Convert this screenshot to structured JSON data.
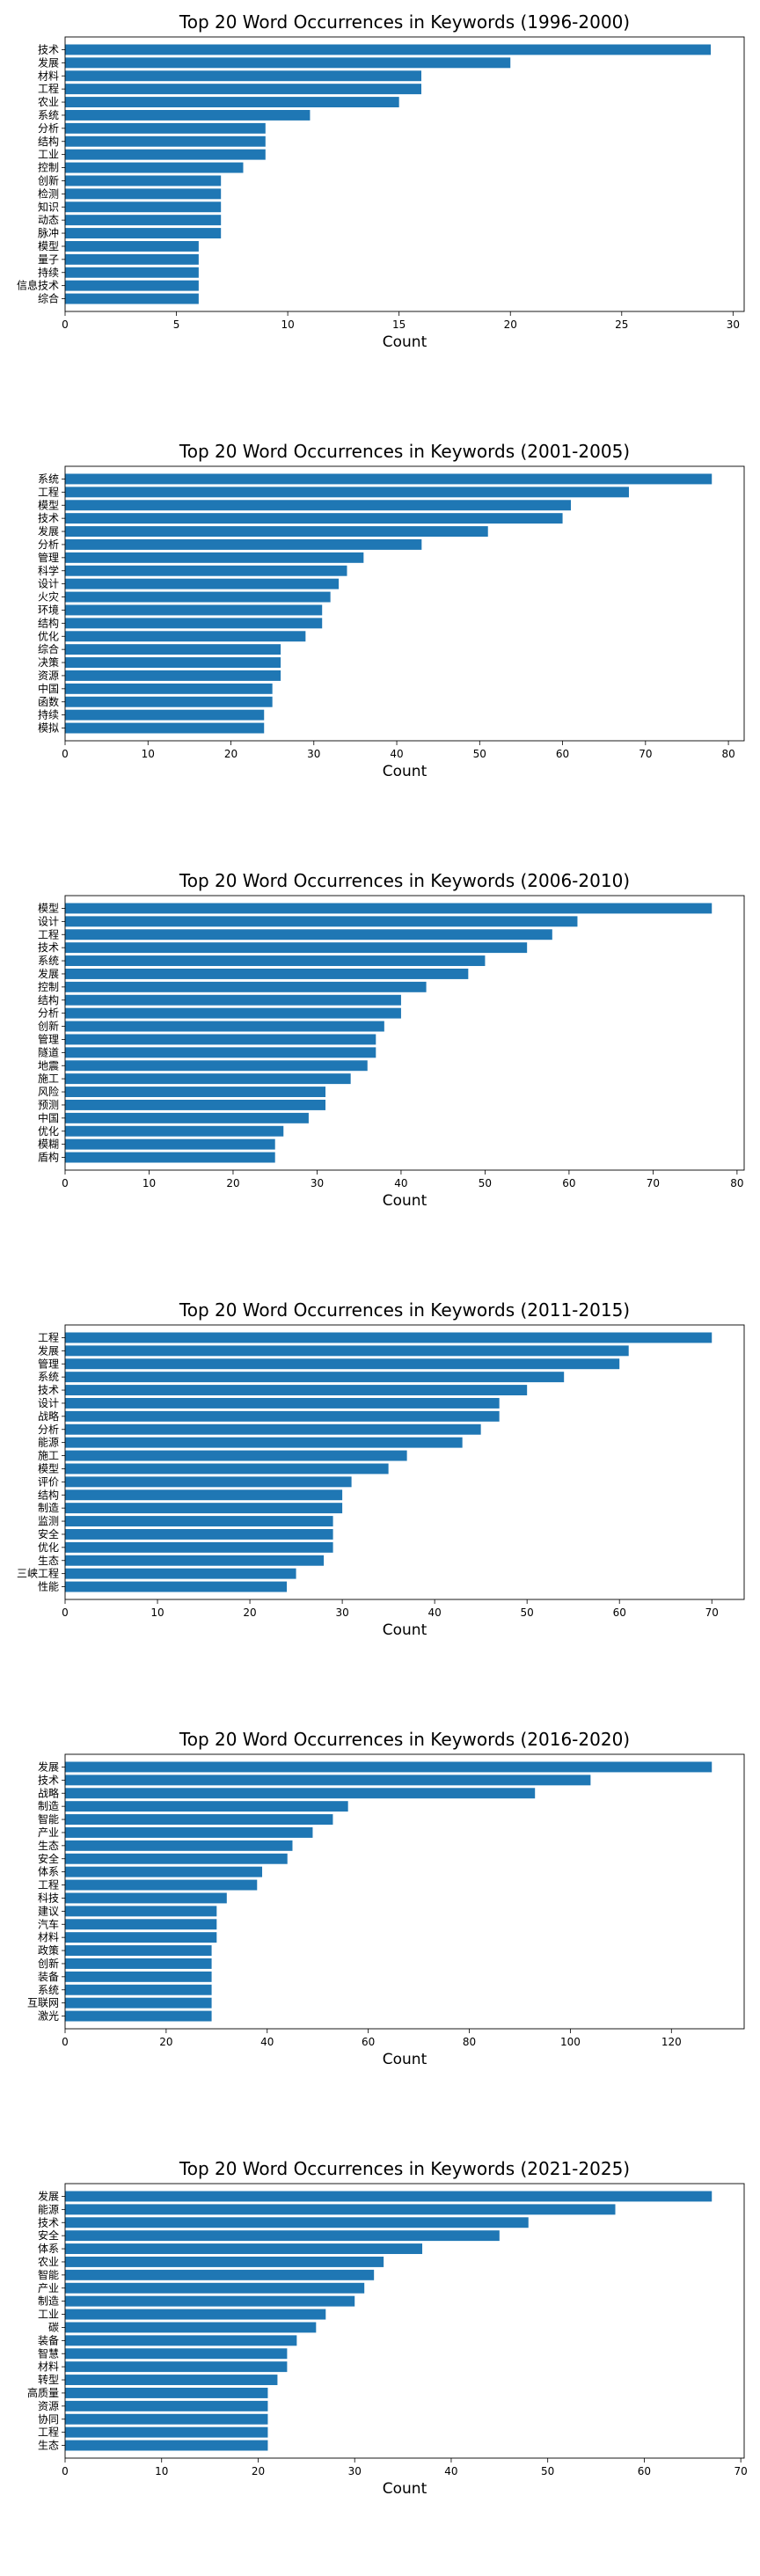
{
  "chart_data": [
    {
      "type": "bar",
      "orientation": "horizontal",
      "title": "Top 20 Word Occurrences in Keywords (1996-2000)",
      "xlabel": "Count",
      "ylabel": "",
      "xlim": [
        0,
        30.5
      ],
      "xticks": [
        0,
        5,
        10,
        15,
        20,
        25,
        30
      ],
      "categories": [
        "技术",
        "发展",
        "材料",
        "工程",
        "农业",
        "系统",
        "分析",
        "结构",
        "工业",
        "控制",
        "创新",
        "检测",
        "知识",
        "动态",
        "脉冲",
        "模型",
        "量子",
        "持续",
        "信息技术",
        "综合"
      ],
      "values": [
        29,
        20,
        16,
        16,
        15,
        11,
        9,
        9,
        9,
        8,
        7,
        7,
        7,
        7,
        7,
        6,
        6,
        6,
        6,
        6
      ],
      "bar_color": "#1f77b4"
    },
    {
      "type": "bar",
      "orientation": "horizontal",
      "title": "Top 20 Word Occurrences in Keywords (2001-2005)",
      "xlabel": "Count",
      "ylabel": "",
      "xlim": [
        0,
        81.9
      ],
      "xticks": [
        0,
        10,
        20,
        30,
        40,
        50,
        60,
        70,
        80
      ],
      "categories": [
        "系统",
        "工程",
        "模型",
        "技术",
        "发展",
        "分析",
        "管理",
        "科学",
        "设计",
        "火灾",
        "环境",
        "结构",
        "优化",
        "综合",
        "决策",
        "资源",
        "中国",
        "函数",
        "持续",
        "模拟"
      ],
      "values": [
        78,
        68,
        61,
        60,
        51,
        43,
        36,
        34,
        33,
        32,
        31,
        31,
        29,
        26,
        26,
        26,
        25,
        25,
        24,
        24
      ],
      "bar_color": "#1f77b4"
    },
    {
      "type": "bar",
      "orientation": "horizontal",
      "title": "Top 20 Word Occurrences in Keywords (2006-2010)",
      "xlabel": "Count",
      "ylabel": "",
      "xlim": [
        0,
        80.85
      ],
      "xticks": [
        0,
        10,
        20,
        30,
        40,
        50,
        60,
        70,
        80
      ],
      "categories": [
        "模型",
        "设计",
        "工程",
        "技术",
        "系统",
        "发展",
        "控制",
        "结构",
        "分析",
        "创新",
        "管理",
        "隧道",
        "地震",
        "施工",
        "风险",
        "预测",
        "中国",
        "优化",
        "模糊",
        "盾构"
      ],
      "values": [
        77,
        61,
        58,
        55,
        50,
        48,
        43,
        40,
        40,
        38,
        37,
        37,
        36,
        34,
        31,
        31,
        29,
        26,
        25,
        25
      ],
      "bar_color": "#1f77b4"
    },
    {
      "type": "bar",
      "orientation": "horizontal",
      "title": "Top 20 Word Occurrences in Keywords (2011-2015)",
      "xlabel": "Count",
      "ylabel": "",
      "xlim": [
        0,
        73.5
      ],
      "xticks": [
        0,
        10,
        20,
        30,
        40,
        50,
        60,
        70
      ],
      "categories": [
        "工程",
        "发展",
        "管理",
        "系统",
        "技术",
        "设计",
        "战略",
        "分析",
        "能源",
        "施工",
        "模型",
        "评价",
        "结构",
        "制造",
        "监测",
        "安全",
        "优化",
        "生态",
        "三峡工程",
        "性能"
      ],
      "values": [
        70,
        61,
        60,
        54,
        50,
        47,
        47,
        45,
        43,
        37,
        35,
        31,
        30,
        30,
        29,
        29,
        29,
        28,
        25,
        24
      ],
      "bar_color": "#1f77b4"
    },
    {
      "type": "bar",
      "orientation": "horizontal",
      "title": "Top 20 Word Occurrences in Keywords (2016-2020)",
      "xlabel": "Count",
      "ylabel": "",
      "xlim": [
        0,
        134.4
      ],
      "xticks": [
        0,
        20,
        40,
        60,
        80,
        100,
        120
      ],
      "categories": [
        "发展",
        "技术",
        "战略",
        "制造",
        "智能",
        "产业",
        "生态",
        "安全",
        "体系",
        "工程",
        "科技",
        "建议",
        "汽车",
        "材料",
        "政策",
        "创新",
        "装备",
        "系统",
        "互联网",
        "激光"
      ],
      "values": [
        128,
        104,
        93,
        56,
        53,
        49,
        45,
        44,
        39,
        38,
        32,
        30,
        30,
        30,
        29,
        29,
        29,
        29,
        29,
        29
      ],
      "bar_color": "#1f77b4"
    },
    {
      "type": "bar",
      "orientation": "horizontal",
      "title": "Top 20 Word Occurrences in Keywords (2021-2025)",
      "xlabel": "Count",
      "ylabel": "",
      "xlim": [
        0,
        70.35
      ],
      "xticks": [
        0,
        10,
        20,
        30,
        40,
        50,
        60,
        70
      ],
      "categories": [
        "发展",
        "能源",
        "技术",
        "安全",
        "体系",
        "农业",
        "智能",
        "产业",
        "制造",
        "工业",
        "碳",
        "装备",
        "智慧",
        "材料",
        "转型",
        "高质量",
        "资源",
        "协同",
        "工程",
        "生态"
      ],
      "values": [
        67,
        57,
        48,
        45,
        37,
        33,
        32,
        31,
        30,
        27,
        26,
        24,
        23,
        23,
        22,
        21,
        21,
        21,
        21,
        21
      ],
      "bar_color": "#1f77b4"
    }
  ]
}
